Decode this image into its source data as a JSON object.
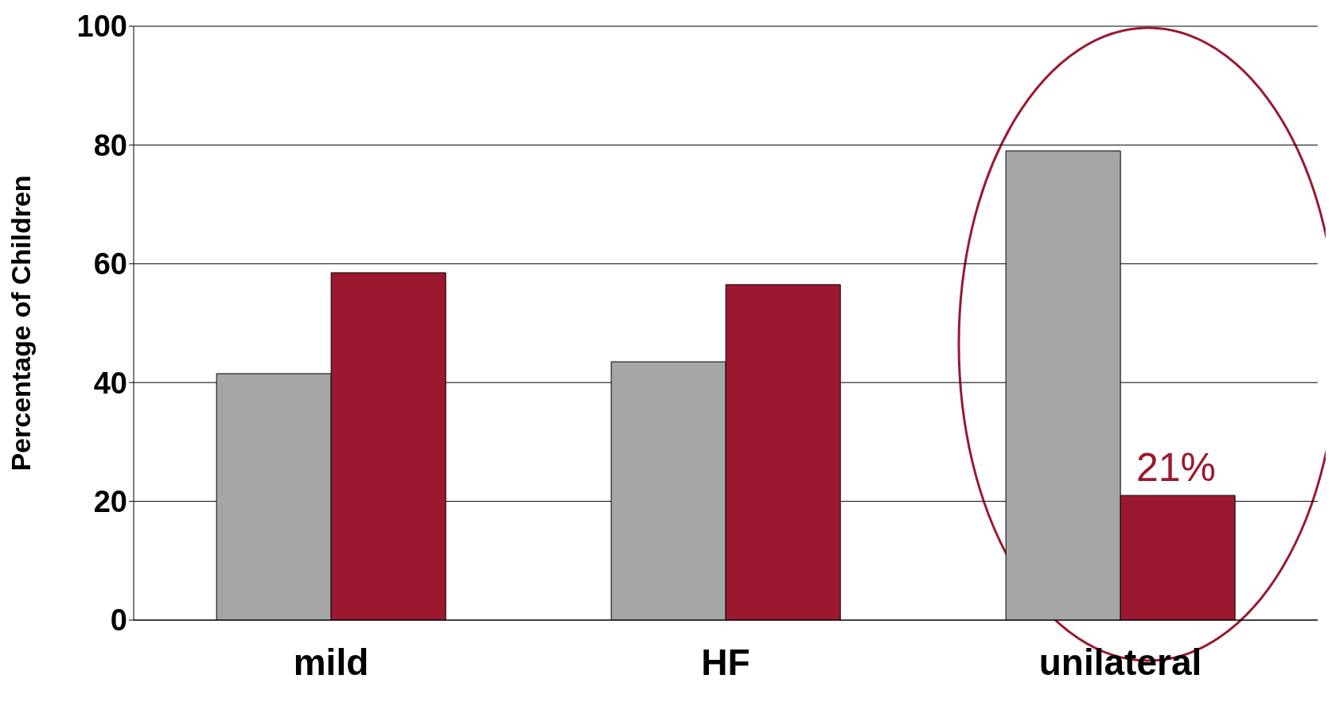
{
  "chart_data": {
    "type": "bar",
    "ylabel": "Percentage of Children",
    "categories": [
      "mild",
      "HF",
      "unilateral"
    ],
    "series": [
      {
        "color": "#a6a6a6",
        "values": [
          41.5,
          43.5,
          79
        ]
      },
      {
        "color": "#9b1830",
        "values": [
          58.5,
          56.5,
          21
        ]
      }
    ],
    "ylim": [
      0,
      100
    ],
    "yticks": [
      0,
      20,
      40,
      60,
      80,
      100
    ],
    "grid": "y",
    "annotations": [
      {
        "text": "21%",
        "x": "unilateral",
        "y": 21
      }
    ]
  }
}
